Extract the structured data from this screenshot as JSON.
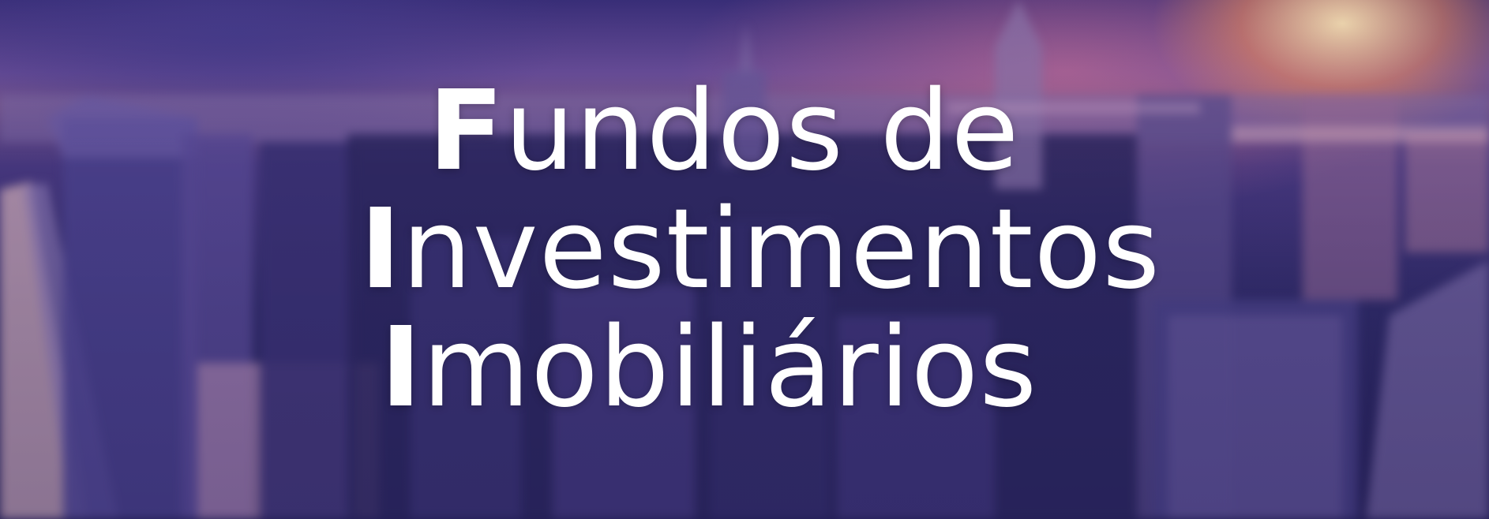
{
  "banner": {
    "title_lines": [
      {
        "initial": "F",
        "rest": "undos de"
      },
      {
        "initial": "I",
        "rest": "nvestimentos"
      },
      {
        "initial": "I",
        "rest": "mobiliários"
      }
    ]
  },
  "colors": {
    "text": "#ffffff",
    "sky_top": "#3a2f7a",
    "sunset_glow": "#ff9a5a",
    "city_shadow": "#241f55"
  },
  "background": "blurred-city-skyline-at-sunset"
}
